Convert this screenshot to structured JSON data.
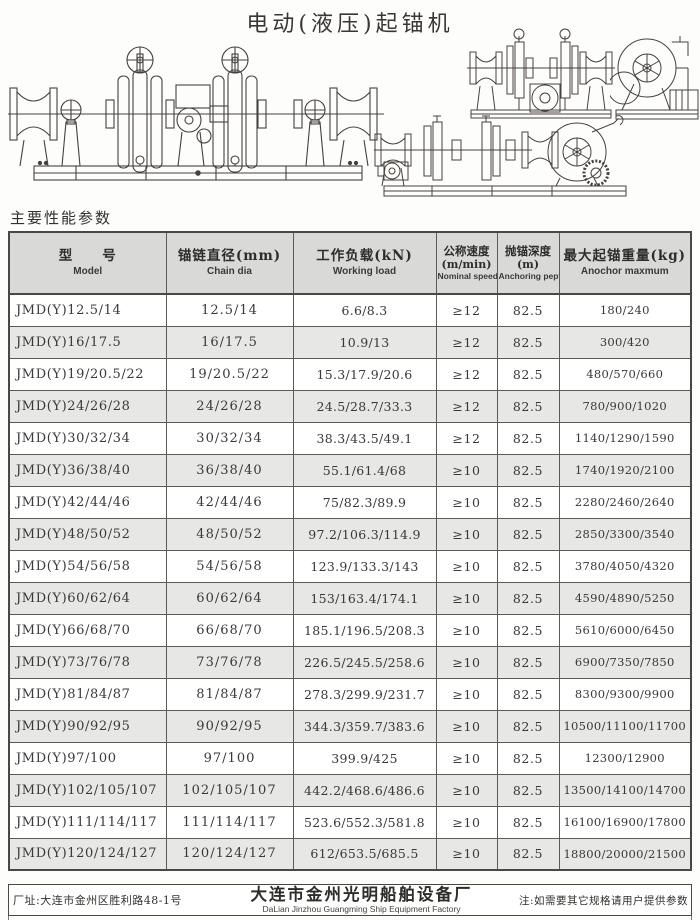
{
  "page": {
    "title": "电动(液压)起锚机",
    "section_label": "主要性能参数"
  },
  "colors": {
    "ink": "#3a3632",
    "line_art": "#46413c",
    "header_bg": "#d9d9d8",
    "row_shade": "#e7e7e6",
    "border": "#4a4843"
  },
  "drawings": [
    {
      "name": "main-windlass-drawing"
    },
    {
      "name": "front-view-windlass-drawing"
    },
    {
      "name": "side-view-windlass-drawing"
    },
    {
      "name": "hand-crank-windlass-drawing"
    }
  ],
  "table": {
    "headers": [
      {
        "zh": "型　　号",
        "en": "Model"
      },
      {
        "zh": "锚链直径(mm)",
        "en": "Chain dia"
      },
      {
        "zh": "工作负载(kN)",
        "en": "Working load"
      },
      {
        "zh": "公称速度",
        "unit": "(m/min)",
        "en": "Nominal speed"
      },
      {
        "zh": "抛锚深度",
        "unit": "(m)",
        "en": "Anchoring pepth"
      },
      {
        "zh": "最大起锚重量(kg)",
        "en": "Anochor maxmum"
      }
    ],
    "rows": [
      [
        "JMD(Y)12.5/14",
        "12.5/14",
        "6.6/8.3",
        "≥12",
        "82.5",
        "180/240"
      ],
      [
        "JMD(Y)16/17.5",
        "16/17.5",
        "10.9/13",
        "≥12",
        "82.5",
        "300/420"
      ],
      [
        "JMD(Y)19/20.5/22",
        "19/20.5/22",
        "15.3/17.9/20.6",
        "≥12",
        "82.5",
        "480/570/660"
      ],
      [
        "JMD(Y)24/26/28",
        "24/26/28",
        "24.5/28.7/33.3",
        "≥12",
        "82.5",
        "780/900/1020"
      ],
      [
        "JMD(Y)30/32/34",
        "30/32/34",
        "38.3/43.5/49.1",
        "≥12",
        "82.5",
        "1140/1290/1590"
      ],
      [
        "JMD(Y)36/38/40",
        "36/38/40",
        "55.1/61.4/68",
        "≥10",
        "82.5",
        "1740/1920/2100"
      ],
      [
        "JMD(Y)42/44/46",
        "42/44/46",
        "75/82.3/89.9",
        "≥10",
        "82.5",
        "2280/2460/2640"
      ],
      [
        "JMD(Y)48/50/52",
        "48/50/52",
        "97.2/106.3/114.9",
        "≥10",
        "82.5",
        "2850/3300/3540"
      ],
      [
        "JMD(Y)54/56/58",
        "54/56/58",
        "123.9/133.3/143",
        "≥10",
        "82.5",
        "3780/4050/4320"
      ],
      [
        "JMD(Y)60/62/64",
        "60/62/64",
        "153/163.4/174.1",
        "≥10",
        "82.5",
        "4590/4890/5250"
      ],
      [
        "JMD(Y)66/68/70",
        "66/68/70",
        "185.1/196.5/208.3",
        "≥10",
        "82.5",
        "5610/6000/6450"
      ],
      [
        "JMD(Y)73/76/78",
        "73/76/78",
        "226.5/245.5/258.6",
        "≥10",
        "82.5",
        "6900/7350/7850"
      ],
      [
        "JMD(Y)81/84/87",
        "81/84/87",
        "278.3/299.9/231.7",
        "≥10",
        "82.5",
        "8300/9300/9900"
      ],
      [
        "JMD(Y)90/92/95",
        "90/92/95",
        "344.3/359.7/383.6",
        "≥10",
        "82.5",
        "10500/11100/11700"
      ],
      [
        "JMD(Y)97/100",
        "97/100",
        "399.9/425",
        "≥10",
        "82.5",
        "12300/12900"
      ],
      [
        "JMD(Y)102/105/107",
        "102/105/107",
        "442.2/468.6/486.6",
        "≥10",
        "82.5",
        "13500/14100/14700"
      ],
      [
        "JMD(Y)111/114/117",
        "111/114/117",
        "523.6/552.3/581.8",
        "≥10",
        "82.5",
        "16100/16900/17800"
      ],
      [
        "JMD(Y)120/124/127",
        "120/124/127",
        "612/653.5/685.5",
        "≥10",
        "82.5",
        "18800/20000/21500"
      ]
    ]
  },
  "footer": {
    "address": "厂址:大连市金州区胜利路48-1号",
    "factory_zh": "大连市金州光明船舶设备厂",
    "factory_en": "DaLian Jinzhou Guangming Ship Equipment Factory",
    "note": "注:如需要其它规格请用户提供参数"
  }
}
